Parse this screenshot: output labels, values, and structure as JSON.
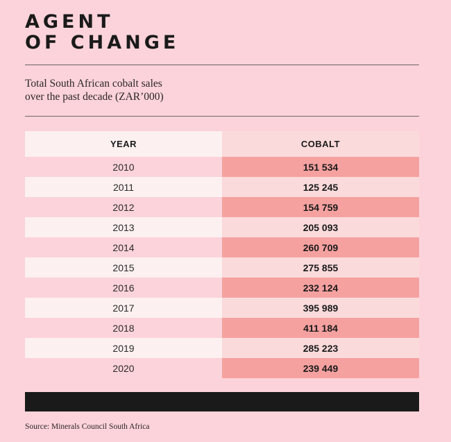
{
  "header": {
    "title_line1": "AGENT",
    "title_line2": "OF CHANGE",
    "subtitle_line1": "Total South African cobalt sales",
    "subtitle_line2": "over the past decade (ZAR’000)"
  },
  "table": {
    "col_year": "YEAR",
    "col_cobalt": "COBALT",
    "rows": [
      {
        "year": "2010",
        "cobalt": "151 534"
      },
      {
        "year": "2011",
        "cobalt": "125 245"
      },
      {
        "year": "2012",
        "cobalt": "154 759"
      },
      {
        "year": "2013",
        "cobalt": "205 093"
      },
      {
        "year": "2014",
        "cobalt": "260 709"
      },
      {
        "year": "2015",
        "cobalt": "275 855"
      },
      {
        "year": "2016",
        "cobalt": "232 124"
      },
      {
        "year": "2017",
        "cobalt": "395 989"
      },
      {
        "year": "2018",
        "cobalt": "411 184"
      },
      {
        "year": "2019",
        "cobalt": "285 223"
      },
      {
        "year": "2020",
        "cobalt": "239 449"
      }
    ]
  },
  "source": "Source: Minerals Council South Africa",
  "colors": {
    "background": "#fcd3da",
    "cell_light": "#fcf0f0",
    "cell_pale": "#fadadb",
    "cell_accent": "#f5a1a0",
    "bar": "#1a1a1a"
  },
  "chart_data": {
    "type": "table",
    "title": "AGENT OF CHANGE",
    "subtitle": "Total South African cobalt sales over the past decade (ZAR’000)",
    "columns": [
      "YEAR",
      "COBALT"
    ],
    "x": [
      2010,
      2011,
      2012,
      2013,
      2014,
      2015,
      2016,
      2017,
      2018,
      2019,
      2020
    ],
    "series": [
      {
        "name": "COBALT",
        "values": [
          151534,
          125245,
          154759,
          205093,
          260709,
          275855,
          232124,
          395989,
          411184,
          285223,
          239449
        ]
      }
    ]
  }
}
